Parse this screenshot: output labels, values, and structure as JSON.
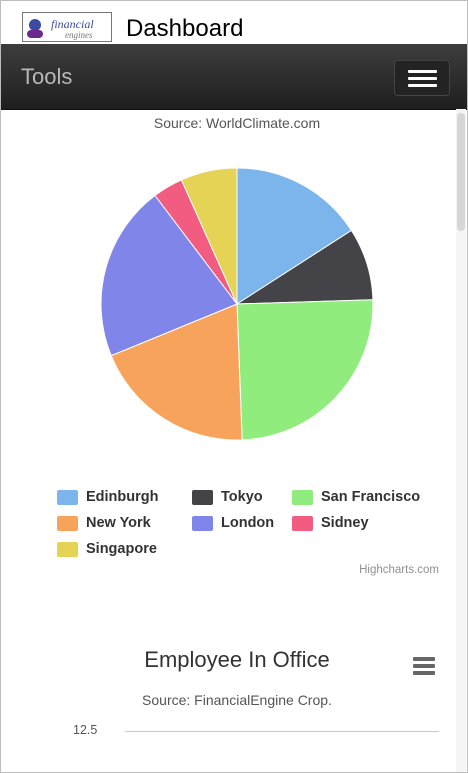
{
  "header": {
    "logo_text": "financial engines",
    "title": "Dashboard"
  },
  "navbar": {
    "title": "Tools",
    "menu_icon": "hamburger-menu-icon"
  },
  "pie_chart": {
    "source": "Source: WorldClimate.com",
    "credits": "Highcharts.com"
  },
  "chart_data": [
    {
      "type": "pie",
      "subtitle": "Source: WorldClimate.com",
      "legend_placement": "bottom",
      "series": [
        {
          "data": [
            {
              "name": "Edinburgh",
              "value": 15.9,
              "color": "#7cb5ec"
            },
            {
              "name": "Tokyo",
              "value": 8.6,
              "color": "#434348"
            },
            {
              "name": "San Francisco",
              "value": 24.9,
              "color": "#90ed7d"
            },
            {
              "name": "New York",
              "value": 19.4,
              "color": "#f7a35c"
            },
            {
              "name": "London",
              "value": 20.9,
              "color": "#8085e9"
            },
            {
              "name": "Sidney",
              "value": 3.6,
              "color": "#f15c80"
            },
            {
              "name": "Singapore",
              "value": 6.7,
              "color": "#e4d354"
            }
          ]
        }
      ]
    },
    {
      "type": "line",
      "title": "Employee In Office",
      "subtitle": "Source: FinancialEngine Crop.",
      "y_ticks": [
        "12.5"
      ]
    }
  ],
  "employee_chart": {
    "title": "Employee In Office",
    "source": "Source: FinancialEngine Crop.",
    "y_tick_top": "12.5",
    "menu_icon": "chart-context-menu-icon"
  }
}
